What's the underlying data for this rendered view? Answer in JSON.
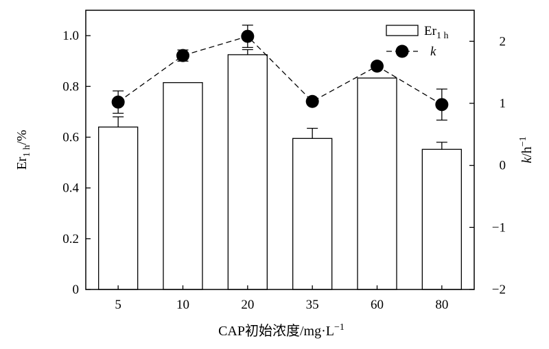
{
  "chart_data": {
    "type": "bar",
    "categories": [
      "5",
      "10",
      "20",
      "35",
      "60",
      "80"
    ],
    "series": [
      {
        "name": "Er",
        "name_sub": "1 h",
        "kind": "bar",
        "axis": "left",
        "values": [
          0.64,
          0.815,
          0.925,
          0.595,
          0.833,
          0.552
        ],
        "error": [
          0.04,
          0.0,
          0.02,
          0.04,
          0.0,
          0.028
        ],
        "color": "#ffffff",
        "stroke": "#000000"
      },
      {
        "name": "k",
        "kind": "line",
        "axis": "right",
        "values": [
          1.02,
          1.77,
          2.08,
          1.03,
          1.6,
          0.98
        ],
        "error": [
          0.18,
          0.09,
          0.18,
          0.0,
          0.0,
          0.25
        ],
        "color": "#000000",
        "line_style": "dashed",
        "marker": "filled-circle"
      }
    ],
    "xlabel": "CAP初始浓度/mg·L",
    "xlabel_sup": "−1",
    "ylabel": {
      "main": "Er",
      "sub": "1 h",
      "tail": "/%"
    },
    "y2label": {
      "main": "k",
      "tail": "/h",
      "sup": "−1"
    },
    "ylim": [
      0,
      1.1
    ],
    "y_ticks": [
      "0",
      "0.2",
      "0.4",
      "0.6",
      "0.8",
      "1.0"
    ],
    "y_tick_values": [
      0,
      0.2,
      0.4,
      0.6,
      0.8,
      1.0
    ],
    "y2lim": [
      -2,
      2.5
    ],
    "y2_ticks": [
      "−2",
      "−1",
      "0",
      "1",
      "2"
    ],
    "y2_tick_values": [
      -2,
      -1,
      0,
      1,
      2
    ],
    "legend_position": "top-right",
    "grid": false
  }
}
